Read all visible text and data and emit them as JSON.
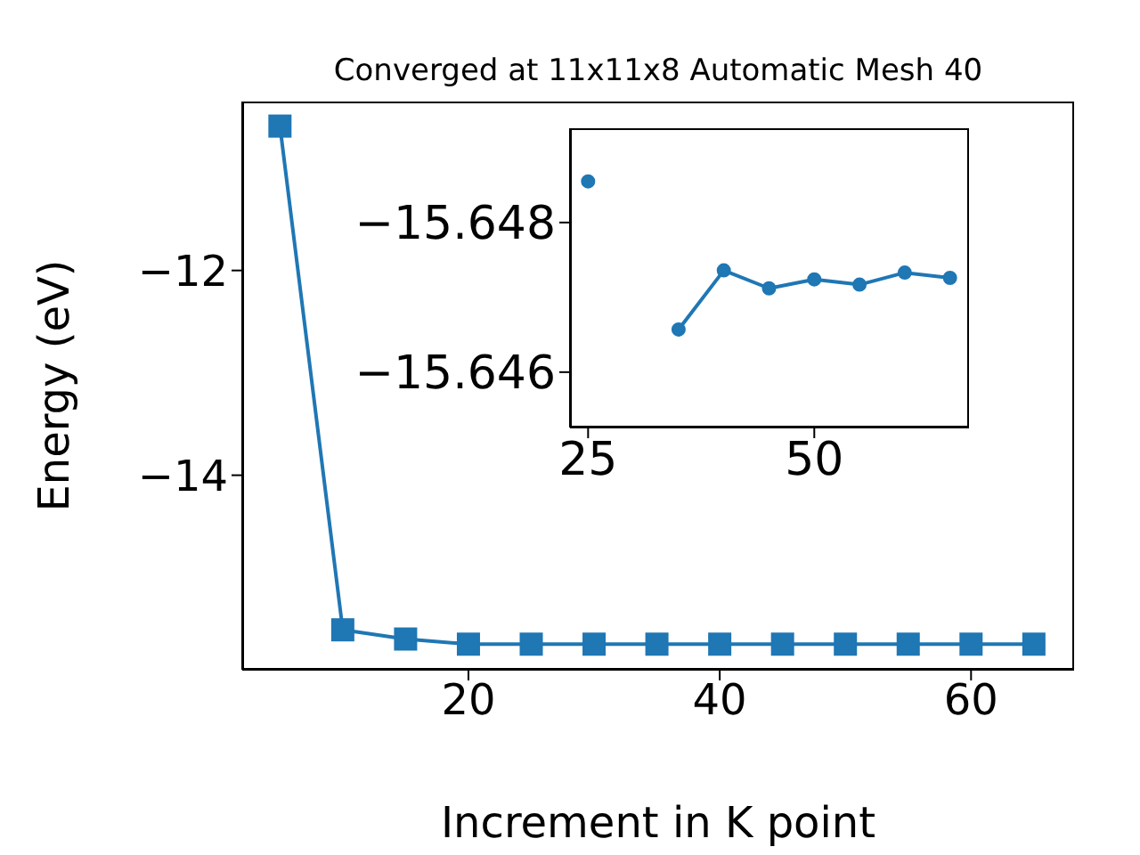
{
  "chart_data": [
    {
      "type": "line",
      "title": "Converged at 11x11x8 Automatic Mesh 40",
      "xlabel": "Increment in K point",
      "ylabel": "Energy (eV)",
      "x": [
        5,
        10,
        15,
        20,
        25,
        30,
        35,
        40,
        45,
        50,
        55,
        60,
        65
      ],
      "series": [
        {
          "color": "#1f77b4",
          "values": [
            -10.59,
            -15.51,
            -15.6,
            -15.65,
            -15.65,
            -15.65,
            -15.65,
            -15.65,
            -15.65,
            -15.65,
            -15.65,
            -15.65,
            -15.65
          ]
        }
      ],
      "xlim": [
        2,
        68.2
      ],
      "xticks": [
        20,
        40,
        60
      ],
      "ylim": [
        -15.9,
        -10.35
      ],
      "yticks": [
        {
          "value": -14,
          "label": "−14"
        },
        {
          "value": -12,
          "label": "−12"
        }
      ],
      "marker": "square",
      "grid": false,
      "legend": false
    },
    {
      "type": "line",
      "x": [
        25,
        30,
        35,
        40,
        45,
        50,
        55,
        60,
        65
      ],
      "series": [
        {
          "color": "#1f77b4",
          "values": [
            -15.64855,
            null,
            -15.64657,
            -15.64736,
            -15.64712,
            -15.64724,
            -15.64717,
            -15.64733,
            -15.64726
          ]
        }
      ],
      "xlim": [
        23,
        67.1
      ],
      "xticks": [
        25,
        50
      ],
      "ylim": [
        -15.64526,
        -15.64926
      ],
      "yticks": [
        {
          "value": -15.648,
          "label": "−15.648"
        },
        {
          "value": -15.646,
          "label": "−15.646"
        }
      ],
      "marker": "circle",
      "grid": false,
      "legend": false
    }
  ]
}
